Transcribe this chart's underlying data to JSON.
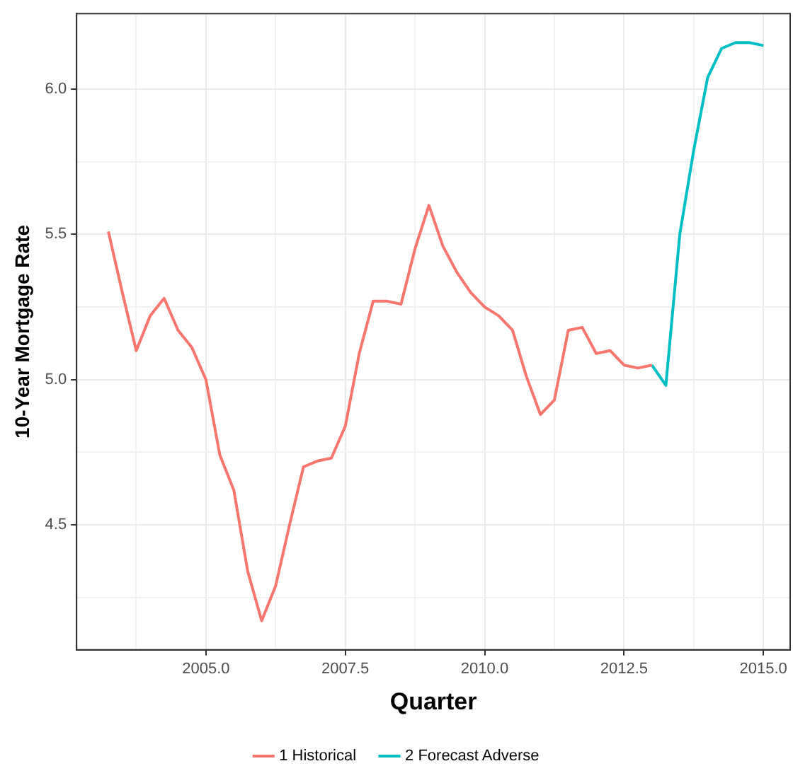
{
  "chart_data": {
    "type": "line",
    "xlabel": "Quarter",
    "ylabel": "10-Year Mortgage Rate",
    "xlim": [
      2002.68,
      2015.48
    ],
    "ylim": [
      4.07,
      6.26
    ],
    "xticks": [
      {
        "value": 2003.75,
        "label": null
      },
      {
        "value": 2005,
        "label": "2005.0"
      },
      {
        "value": 2006.25,
        "label": null
      },
      2007.5,
      {
        "value": 2008.75,
        "label": null
      },
      {
        "value": 2010,
        "label": "2010.0"
      },
      {
        "value": 2011.25,
        "label": null
      },
      2012.5,
      {
        "value": 2013.75,
        "label": null
      },
      {
        "value": 2015,
        "label": "2015.0"
      }
    ],
    "yticks": [
      {
        "value": 4.25,
        "label": null
      },
      4.5,
      {
        "value": 4.75,
        "label": null
      },
      {
        "value": 5,
        "label": "5.0"
      },
      {
        "value": 5.25,
        "label": null
      },
      5.5,
      {
        "value": 5.75,
        "label": null
      },
      {
        "value": 6,
        "label": "6.0"
      }
    ],
    "grid": true,
    "legend": "bottom",
    "marker": "none",
    "line_style": "solid",
    "series": [
      {
        "name": "1 Historical",
        "color": "#f8766d",
        "x": [
          2003.25,
          2003.5,
          2003.75,
          2004.0,
          2004.25,
          2004.5,
          2004.75,
          2005.0,
          2005.25,
          2005.5,
          2005.75,
          2006.0,
          2006.25,
          2006.5,
          2006.75,
          2007.0,
          2007.25,
          2007.5,
          2007.75,
          2008.0,
          2008.25,
          2008.5,
          2008.75,
          2009.0,
          2009.25,
          2009.5,
          2009.75,
          2010.0,
          2010.25,
          2010.5,
          2010.75,
          2011.0,
          2011.25,
          2011.5,
          2011.75,
          2012.0,
          2012.25,
          2012.5,
          2012.75,
          2013.0
        ],
        "values": [
          5.51,
          5.3,
          5.1,
          5.22,
          5.28,
          5.17,
          5.11,
          5.0,
          4.74,
          4.62,
          4.34,
          4.17,
          4.29,
          4.5,
          4.7,
          4.72,
          4.73,
          4.84,
          5.09,
          5.27,
          5.27,
          5.26,
          5.45,
          5.6,
          5.46,
          5.37,
          5.3,
          5.25,
          5.22,
          5.17,
          5.01,
          4.88,
          4.93,
          5.17,
          5.18,
          5.09,
          5.1,
          5.05,
          5.04,
          5.05
        ]
      },
      {
        "name": "2 Forecast Adverse",
        "color": "#00bfc4",
        "x": [
          2013.0,
          2013.25,
          2013.5,
          2013.75,
          2014.0,
          2014.25,
          2014.5,
          2014.75,
          2015.0
        ],
        "values": [
          5.05,
          4.98,
          5.5,
          5.79,
          6.04,
          6.14,
          6.16,
          6.16,
          6.15
        ]
      }
    ]
  }
}
